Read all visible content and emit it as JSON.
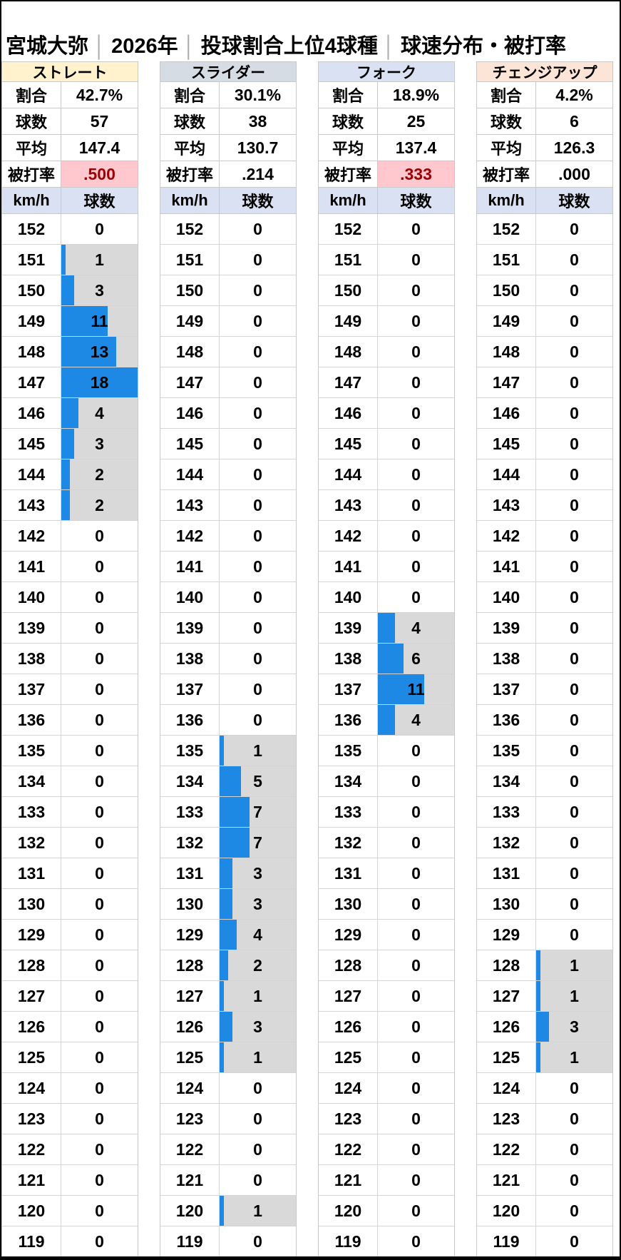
{
  "title": {
    "parts": [
      "宮城大弥",
      "2026年",
      "投球割合上位4球種",
      "球速分布・被打率"
    ],
    "separator": "│"
  },
  "stat_labels": [
    "割合",
    "球数",
    "平均",
    "被打率"
  ],
  "column_headers": {
    "speed": "km/h",
    "count": "球数"
  },
  "colors": {
    "bar_blue": "#1E88E5",
    "highlight_bg": "#FFC7CE",
    "highlight_text": "#9C0006",
    "nonzero_cell_bg": "#D9D9D9",
    "speed_header_bg": "#D9E1F2"
  },
  "pitches": [
    {
      "name": "ストレート",
      "header_bg": "#FFF2CC",
      "stats": [
        "42.7%",
        "57",
        "147.4",
        ".500"
      ],
      "ba_highlight": true
    },
    {
      "name": "スライダー",
      "header_bg": "#D6DCE4",
      "stats": [
        "30.1%",
        "38",
        "130.7",
        ".214"
      ],
      "ba_highlight": false
    },
    {
      "name": "フォーク",
      "header_bg": "#D9E1F2",
      "stats": [
        "18.9%",
        "25",
        "137.4",
        ".333"
      ],
      "ba_highlight": true
    },
    {
      "name": "チェンジアップ",
      "header_bg": "#FCE4D6",
      "stats": [
        "4.2%",
        "6",
        "126.3",
        ".000"
      ],
      "ba_highlight": false
    }
  ],
  "chart_data": {
    "type": "bar",
    "orientation": "horizontal",
    "title": "宮城大弥│2026年│投球割合上位4球種│球速分布・被打率",
    "xlabel": "球数",
    "ylabel": "km/h",
    "xlim": [
      0,
      18
    ],
    "categories": [
      152,
      151,
      150,
      149,
      148,
      147,
      146,
      145,
      144,
      143,
      142,
      141,
      140,
      139,
      138,
      137,
      136,
      135,
      134,
      133,
      132,
      131,
      130,
      129,
      128,
      127,
      126,
      125,
      124,
      123,
      122,
      121,
      120,
      119
    ],
    "series": [
      {
        "name": "ストレート",
        "values": [
          0,
          1,
          3,
          11,
          13,
          18,
          4,
          3,
          2,
          2,
          0,
          0,
          0,
          0,
          0,
          0,
          0,
          0,
          0,
          0,
          0,
          0,
          0,
          0,
          0,
          0,
          0,
          0,
          0,
          0,
          0,
          0,
          0,
          0
        ]
      },
      {
        "name": "スライダー",
        "values": [
          0,
          0,
          0,
          0,
          0,
          0,
          0,
          0,
          0,
          0,
          0,
          0,
          0,
          0,
          0,
          0,
          0,
          1,
          5,
          7,
          7,
          3,
          3,
          4,
          2,
          1,
          3,
          1,
          0,
          0,
          0,
          0,
          1,
          0
        ]
      },
      {
        "name": "フォーク",
        "values": [
          0,
          0,
          0,
          0,
          0,
          0,
          0,
          0,
          0,
          0,
          0,
          0,
          0,
          4,
          6,
          11,
          4,
          0,
          0,
          0,
          0,
          0,
          0,
          0,
          0,
          0,
          0,
          0,
          0,
          0,
          0,
          0,
          0,
          0
        ]
      },
      {
        "name": "チェンジアップ",
        "values": [
          0,
          0,
          0,
          0,
          0,
          0,
          0,
          0,
          0,
          0,
          0,
          0,
          0,
          0,
          0,
          0,
          0,
          0,
          0,
          0,
          0,
          0,
          0,
          0,
          1,
          1,
          3,
          1,
          0,
          0,
          0,
          0,
          0,
          0
        ]
      }
    ]
  }
}
